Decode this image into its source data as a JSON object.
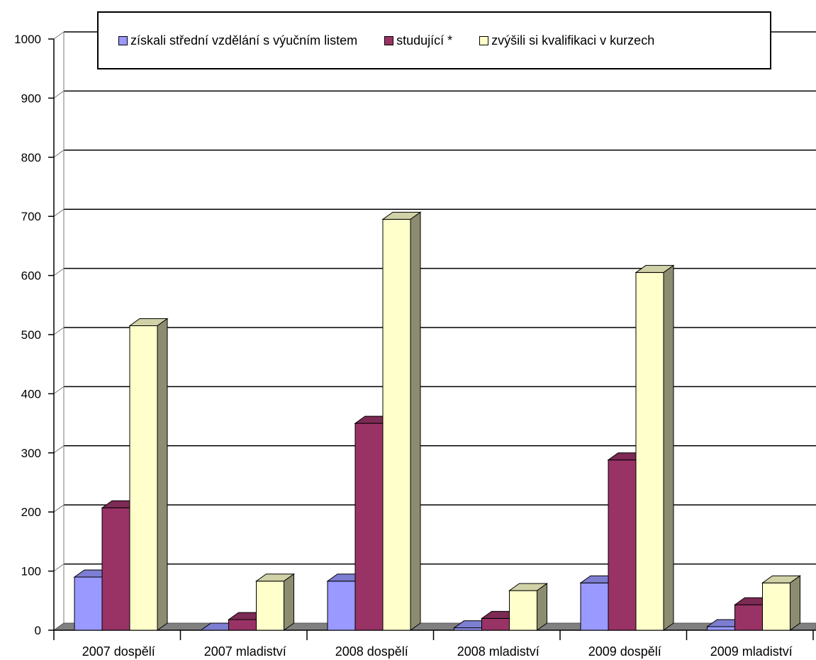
{
  "chart_data": {
    "type": "bar",
    "categories": [
      "2007 dospělí",
      "2007 mladiství",
      "2008 dospělí",
      "2008 mladiství",
      "2009 dospělí",
      "2009 mladiství"
    ],
    "series": [
      {
        "name": "získali střední vzdělání s výučním listem",
        "values": [
          90,
          0,
          83,
          4,
          80,
          6
        ],
        "color": "#9999ff"
      },
      {
        "name": "studující *",
        "values": [
          207,
          18,
          350,
          20,
          288,
          43
        ],
        "color": "#993366"
      },
      {
        "name": "zvýšili si kvalifikaci v kurzech",
        "values": [
          515,
          83,
          695,
          67,
          605,
          80
        ],
        "color": "#ffffcc"
      }
    ],
    "yticks": [
      "0",
      "100",
      "200",
      "300",
      "400",
      "500",
      "600",
      "700",
      "800",
      "900",
      "1000"
    ],
    "ylim": [
      0,
      1000
    ],
    "grid": true,
    "style": "3d-column",
    "legend_position": "top"
  }
}
